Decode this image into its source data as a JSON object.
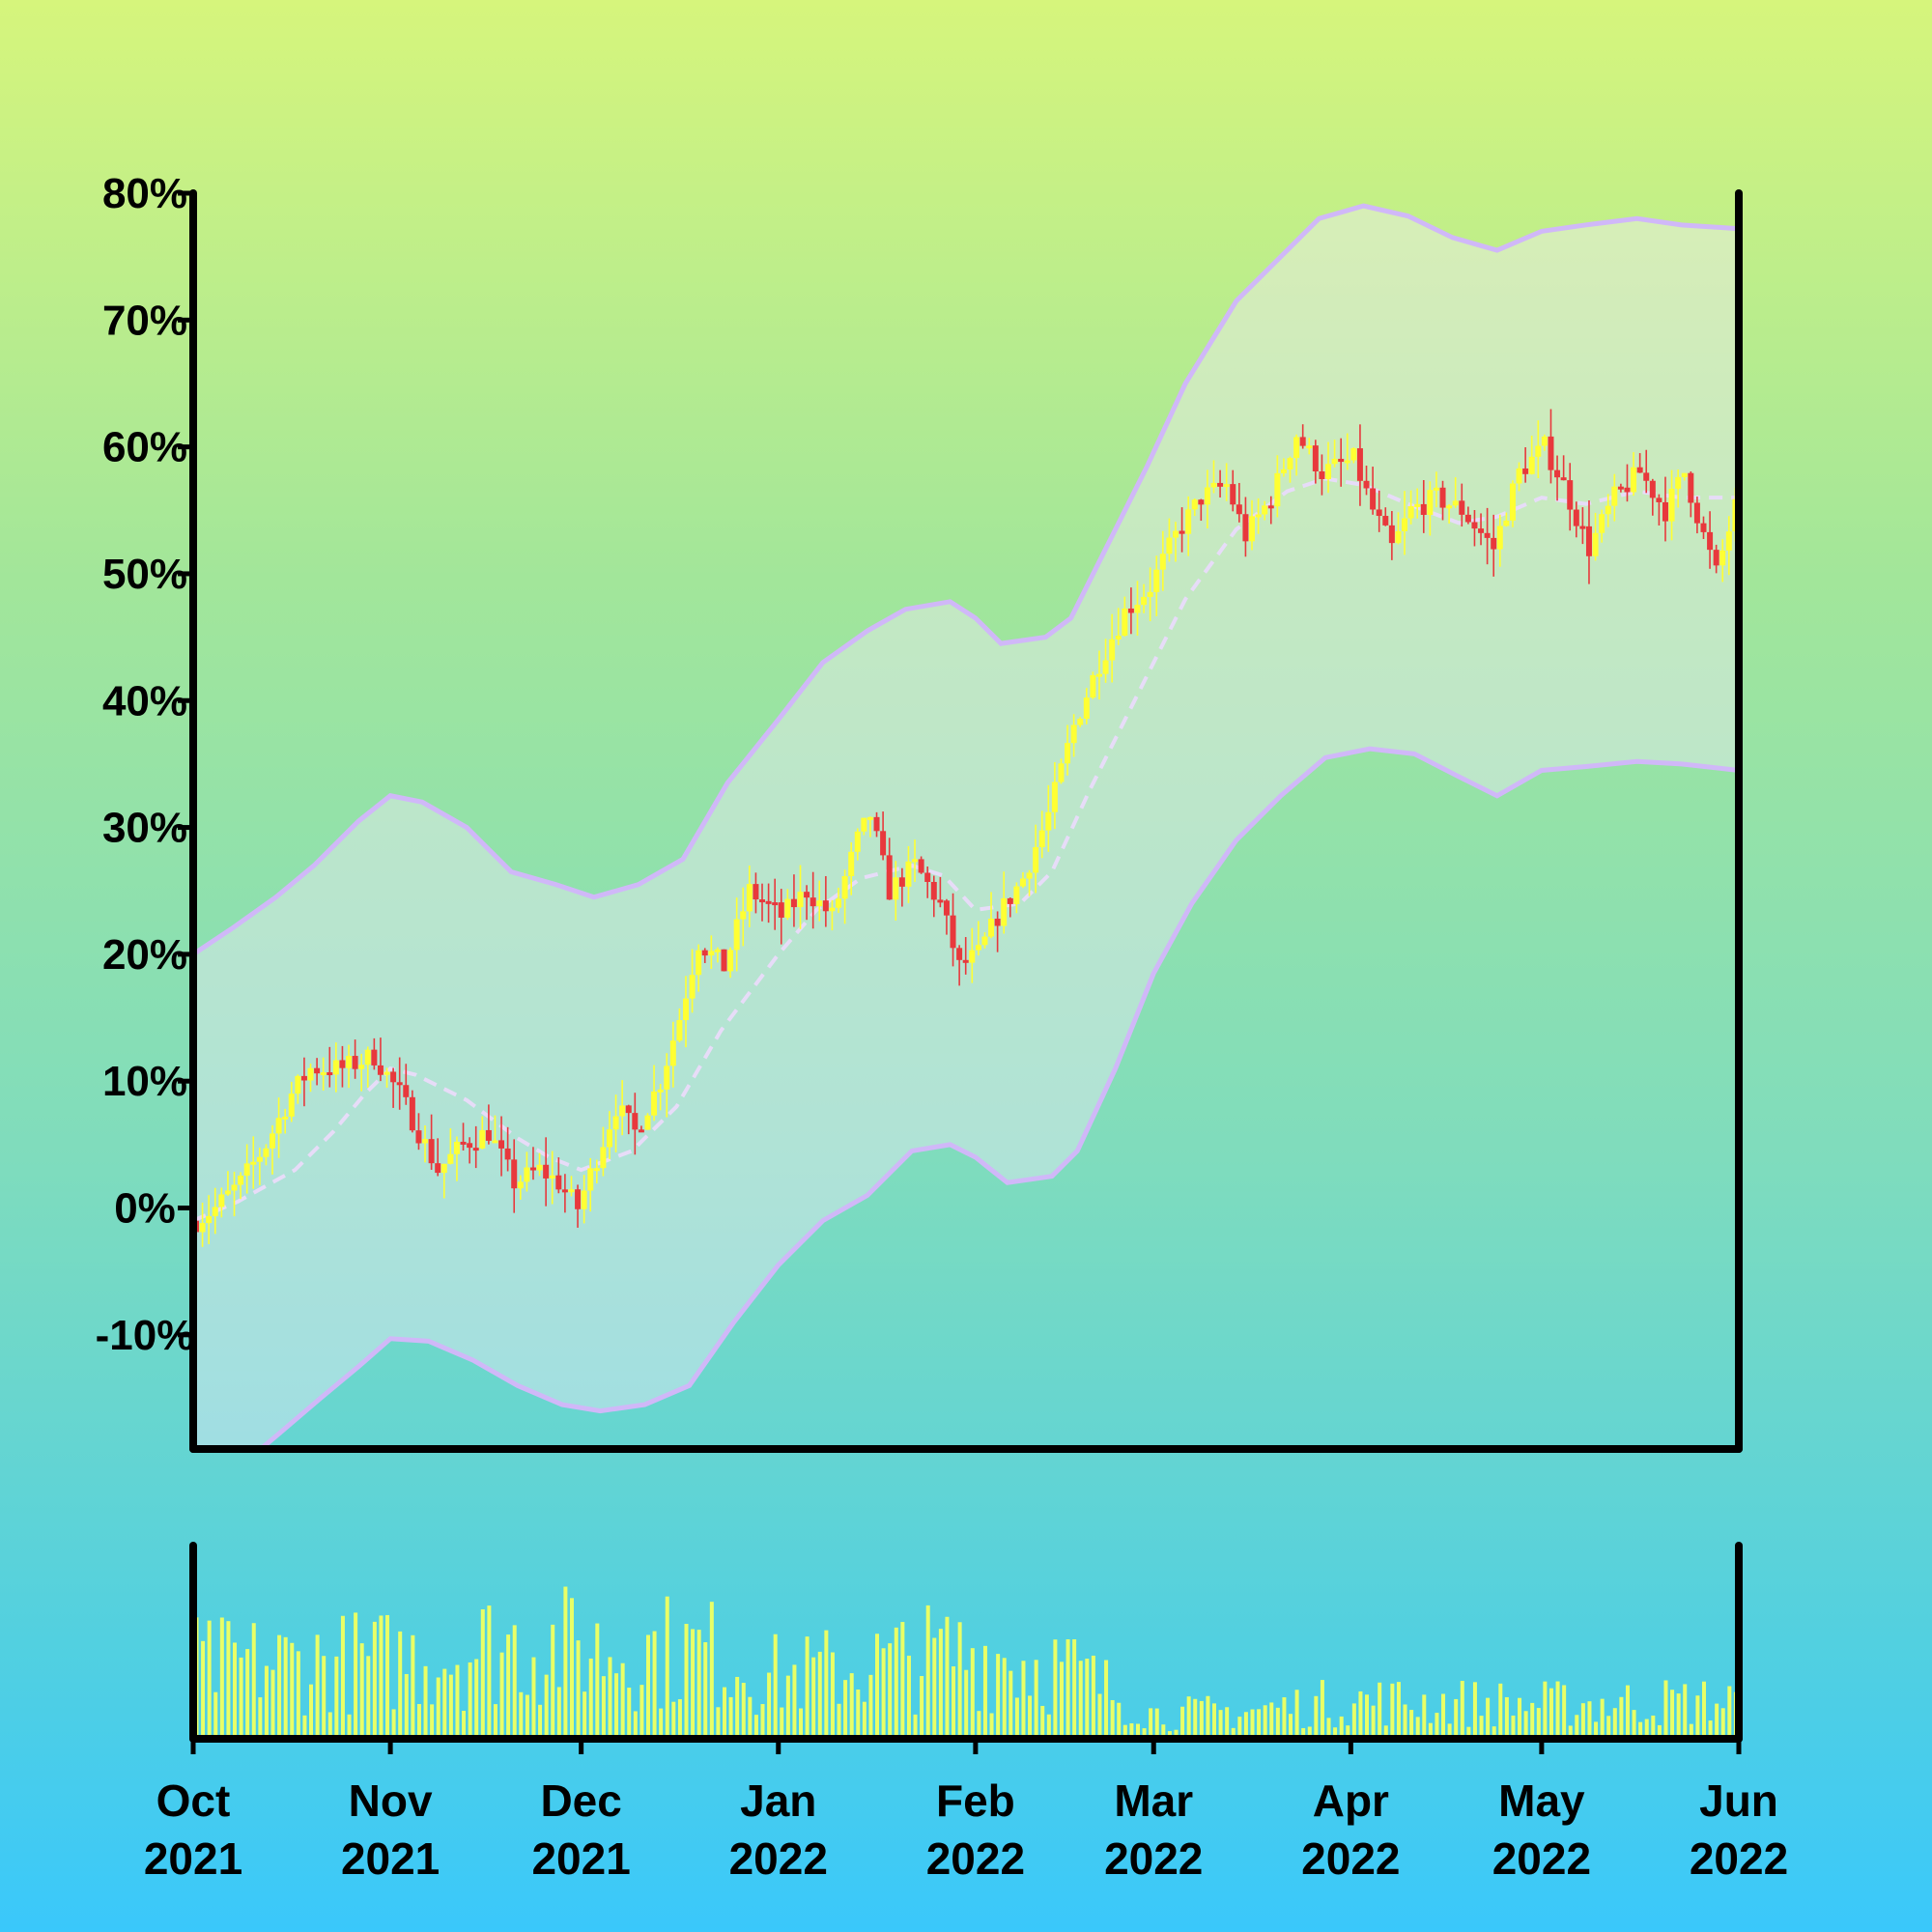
{
  "colors": {
    "up_candle": "#ffff33",
    "down_candle": "#e8383c",
    "band": "#d0b8f8",
    "band_fill": "#f3ecfb",
    "ma_line": "#e7dcf8",
    "volume": "#e9ff66",
    "axis": "#000000"
  },
  "chart_data": {
    "type": "candlestick",
    "title": "",
    "xlabel": "",
    "ylabel": "",
    "x_range": [
      "2021-10-01",
      "2022-06-01"
    ],
    "ylim": [
      -0.19,
      0.8
    ],
    "y_ticks": [
      {
        "value": -0.1,
        "label": "-10%"
      },
      {
        "value": 0.0,
        "label": "0%"
      },
      {
        "value": 0.1,
        "label": "10%"
      },
      {
        "value": 0.2,
        "label": "20%"
      },
      {
        "value": 0.3,
        "label": "30%"
      },
      {
        "value": 0.4,
        "label": "40%"
      },
      {
        "value": 0.5,
        "label": "50%"
      },
      {
        "value": 0.6,
        "label": "60%"
      },
      {
        "value": 0.7,
        "label": "70%"
      },
      {
        "value": 0.8,
        "label": "80%"
      }
    ],
    "x_ticks": [
      {
        "date": "2021-10-01",
        "month": "Oct",
        "year": "2021"
      },
      {
        "date": "2021-11-01",
        "month": "Nov",
        "year": "2021"
      },
      {
        "date": "2021-12-01",
        "month": "Dec",
        "year": "2021"
      },
      {
        "date": "2022-01-01",
        "month": "Jan",
        "year": "2022"
      },
      {
        "date": "2022-02-01",
        "month": "Feb",
        "year": "2022"
      },
      {
        "date": "2022-03-01",
        "month": "Mar",
        "year": "2022"
      },
      {
        "date": "2022-04-01",
        "month": "Apr",
        "year": "2022"
      },
      {
        "date": "2022-05-01",
        "month": "May",
        "year": "2022"
      },
      {
        "date": "2022-06-01",
        "month": "Jun",
        "year": "2022"
      }
    ],
    "close_path": [
      [
        "2021-10-01",
        -0.01
      ],
      [
        "2021-10-04",
        0.0
      ],
      [
        "2021-10-08",
        0.02
      ],
      [
        "2021-10-12",
        0.05
      ],
      [
        "2021-10-16",
        0.09
      ],
      [
        "2021-10-19",
        0.11
      ],
      [
        "2021-10-24",
        0.11
      ],
      [
        "2021-10-29",
        0.12
      ],
      [
        "2021-11-02",
        0.09
      ],
      [
        "2021-11-05",
        0.06
      ],
      [
        "2021-11-08",
        0.03
      ],
      [
        "2021-11-12",
        0.05
      ],
      [
        "2021-11-16",
        0.06
      ],
      [
        "2021-11-20",
        0.02
      ],
      [
        "2021-11-24",
        0.03
      ],
      [
        "2021-11-27",
        0.02
      ],
      [
        "2021-11-30",
        0.0
      ],
      [
        "2021-12-03",
        0.04
      ],
      [
        "2021-12-06",
        0.08
      ],
      [
        "2021-12-09",
        0.06
      ],
      [
        "2021-12-13",
        0.1
      ],
      [
        "2021-12-16",
        0.15
      ],
      [
        "2021-12-19",
        0.21
      ],
      [
        "2021-12-23",
        0.19
      ],
      [
        "2021-12-27",
        0.25
      ],
      [
        "2022-01-01",
        0.23
      ],
      [
        "2022-01-05",
        0.25
      ],
      [
        "2022-01-09",
        0.23
      ],
      [
        "2022-01-13",
        0.29
      ],
      [
        "2022-01-15",
        0.31
      ],
      [
        "2022-01-18",
        0.25
      ],
      [
        "2022-01-22",
        0.27
      ],
      [
        "2022-01-26",
        0.24
      ],
      [
        "2022-01-29",
        0.19
      ],
      [
        "2022-02-01",
        0.2
      ],
      [
        "2022-02-04",
        0.23
      ],
      [
        "2022-02-08",
        0.26
      ],
      [
        "2022-02-12",
        0.31
      ],
      [
        "2022-02-16",
        0.38
      ],
      [
        "2022-02-20",
        0.43
      ],
      [
        "2022-02-24",
        0.47
      ],
      [
        "2022-02-28",
        0.49
      ],
      [
        "2022-03-04",
        0.53
      ],
      [
        "2022-03-08",
        0.56
      ],
      [
        "2022-03-12",
        0.57
      ],
      [
        "2022-03-15",
        0.53
      ],
      [
        "2022-03-19",
        0.56
      ],
      [
        "2022-03-23",
        0.61
      ],
      [
        "2022-03-27",
        0.58
      ],
      [
        "2022-04-01",
        0.59
      ],
      [
        "2022-04-04",
        0.55
      ],
      [
        "2022-04-07",
        0.52
      ],
      [
        "2022-04-10",
        0.55
      ],
      [
        "2022-04-14",
        0.56
      ],
      [
        "2022-04-18",
        0.55
      ],
      [
        "2022-04-23",
        0.52
      ],
      [
        "2022-04-27",
        0.58
      ],
      [
        "2022-05-01",
        0.6
      ],
      [
        "2022-05-04",
        0.57
      ],
      [
        "2022-05-08",
        0.52
      ],
      [
        "2022-05-12",
        0.56
      ],
      [
        "2022-05-16",
        0.58
      ],
      [
        "2022-05-20",
        0.55
      ],
      [
        "2022-05-23",
        0.58
      ],
      [
        "2022-05-26",
        0.53
      ],
      [
        "2022-05-28",
        0.5
      ],
      [
        "2022-06-01",
        0.57
      ]
    ],
    "moving_average": [
      [
        "2021-10-01",
        -0.01
      ],
      [
        "2021-10-08",
        0.005
      ],
      [
        "2021-10-17",
        0.03
      ],
      [
        "2021-10-23",
        0.06
      ],
      [
        "2021-10-28",
        0.09
      ],
      [
        "2021-11-01",
        0.11
      ],
      [
        "2021-11-05",
        0.105
      ],
      [
        "2021-11-13",
        0.085
      ],
      [
        "2021-11-21",
        0.055
      ],
      [
        "2021-11-26",
        0.04
      ],
      [
        "2021-12-01",
        0.03
      ],
      [
        "2021-12-09",
        0.045
      ],
      [
        "2021-12-16",
        0.08
      ],
      [
        "2021-12-23",
        0.14
      ],
      [
        "2022-01-01",
        0.2
      ],
      [
        "2022-01-07",
        0.235
      ],
      [
        "2022-01-14",
        0.26
      ],
      [
        "2022-01-22",
        0.27
      ],
      [
        "2022-01-27",
        0.262
      ],
      [
        "2022-02-01",
        0.235
      ],
      [
        "2022-02-08",
        0.24
      ],
      [
        "2022-02-13",
        0.265
      ],
      [
        "2022-02-19",
        0.33
      ],
      [
        "2022-02-27",
        0.41
      ],
      [
        "2022-03-06",
        0.48
      ],
      [
        "2022-03-14",
        0.535
      ],
      [
        "2022-03-22",
        0.565
      ],
      [
        "2022-03-28",
        0.575
      ],
      [
        "2022-04-03",
        0.57
      ],
      [
        "2022-04-10",
        0.555
      ],
      [
        "2022-04-18",
        0.54
      ],
      [
        "2022-04-24",
        0.545
      ],
      [
        "2022-05-01",
        0.56
      ],
      [
        "2022-05-08",
        0.555
      ],
      [
        "2022-05-16",
        0.565
      ],
      [
        "2022-05-23",
        0.56
      ],
      [
        "2022-06-01",
        0.56
      ]
    ],
    "upper_band": [
      [
        "2021-10-01",
        0.2
      ],
      [
        "2021-10-07",
        0.22
      ],
      [
        "2021-10-14",
        0.245
      ],
      [
        "2021-10-20",
        0.27
      ],
      [
        "2021-10-27",
        0.305
      ],
      [
        "2021-11-01",
        0.325
      ],
      [
        "2021-11-06",
        0.32
      ],
      [
        "2021-11-13",
        0.3
      ],
      [
        "2021-11-20",
        0.265
      ],
      [
        "2021-11-27",
        0.255
      ],
      [
        "2021-12-03",
        0.245
      ],
      [
        "2021-12-10",
        0.255
      ],
      [
        "2021-12-17",
        0.275
      ],
      [
        "2021-12-24",
        0.335
      ],
      [
        "2022-01-01",
        0.385
      ],
      [
        "2022-01-08",
        0.43
      ],
      [
        "2022-01-15",
        0.455
      ],
      [
        "2022-01-21",
        0.472
      ],
      [
        "2022-01-28",
        0.478
      ],
      [
        "2022-02-01",
        0.465
      ],
      [
        "2022-02-05",
        0.445
      ],
      [
        "2022-02-12",
        0.45
      ],
      [
        "2022-02-16",
        0.465
      ],
      [
        "2022-02-22",
        0.525
      ],
      [
        "2022-02-28",
        0.585
      ],
      [
        "2022-03-06",
        0.65
      ],
      [
        "2022-03-14",
        0.715
      ],
      [
        "2022-03-21",
        0.75
      ],
      [
        "2022-03-27",
        0.78
      ],
      [
        "2022-04-03",
        0.79
      ],
      [
        "2022-04-10",
        0.782
      ],
      [
        "2022-04-17",
        0.765
      ],
      [
        "2022-04-24",
        0.755
      ],
      [
        "2022-05-01",
        0.77
      ],
      [
        "2022-05-08",
        0.775
      ],
      [
        "2022-05-16",
        0.78
      ],
      [
        "2022-05-23",
        0.775
      ],
      [
        "2022-06-01",
        0.772
      ]
    ],
    "lower_band": [
      [
        "2021-10-01",
        -0.19
      ],
      [
        "2021-10-08",
        -0.205
      ],
      [
        "2021-10-14",
        -0.18
      ],
      [
        "2021-10-21",
        -0.15
      ],
      [
        "2021-10-27",
        -0.125
      ],
      [
        "2021-11-01",
        -0.103
      ],
      [
        "2021-11-07",
        -0.105
      ],
      [
        "2021-11-14",
        -0.12
      ],
      [
        "2021-11-21",
        -0.14
      ],
      [
        "2021-11-28",
        -0.155
      ],
      [
        "2021-12-04",
        -0.16
      ],
      [
        "2021-12-11",
        -0.155
      ],
      [
        "2021-12-18",
        -0.14
      ],
      [
        "2021-12-25",
        -0.09
      ],
      [
        "2022-01-01",
        -0.045
      ],
      [
        "2022-01-08",
        -0.01
      ],
      [
        "2022-01-15",
        0.01
      ],
      [
        "2022-01-22",
        0.045
      ],
      [
        "2022-01-28",
        0.05
      ],
      [
        "2022-02-01",
        0.04
      ],
      [
        "2022-02-06",
        0.02
      ],
      [
        "2022-02-13",
        0.025
      ],
      [
        "2022-02-17",
        0.045
      ],
      [
        "2022-02-23",
        0.11
      ],
      [
        "2022-03-01",
        0.185
      ],
      [
        "2022-03-07",
        0.24
      ],
      [
        "2022-03-14",
        0.29
      ],
      [
        "2022-03-21",
        0.325
      ],
      [
        "2022-03-28",
        0.355
      ],
      [
        "2022-04-04",
        0.362
      ],
      [
        "2022-04-11",
        0.358
      ],
      [
        "2022-04-18",
        0.34
      ],
      [
        "2022-04-24",
        0.325
      ],
      [
        "2022-05-01",
        0.345
      ],
      [
        "2022-05-08",
        0.348
      ],
      [
        "2022-05-16",
        0.352
      ],
      [
        "2022-05-23",
        0.35
      ],
      [
        "2022-06-01",
        0.345
      ]
    ],
    "volume_profile": [
      [
        "2021-10-01",
        0.42
      ],
      [
        "2021-11-01",
        0.45
      ],
      [
        "2021-11-20",
        0.55
      ],
      [
        "2021-12-01",
        0.52
      ],
      [
        "2021-12-20",
        0.5
      ],
      [
        "2022-01-01",
        0.35
      ],
      [
        "2022-01-20",
        0.45
      ],
      [
        "2022-02-01",
        0.5
      ],
      [
        "2022-02-15",
        0.4
      ],
      [
        "2022-03-01",
        0.14
      ],
      [
        "2022-03-15",
        0.16
      ],
      [
        "2022-04-01",
        0.22
      ],
      [
        "2022-05-01",
        0.2
      ],
      [
        "2022-06-01",
        0.22
      ]
    ]
  }
}
